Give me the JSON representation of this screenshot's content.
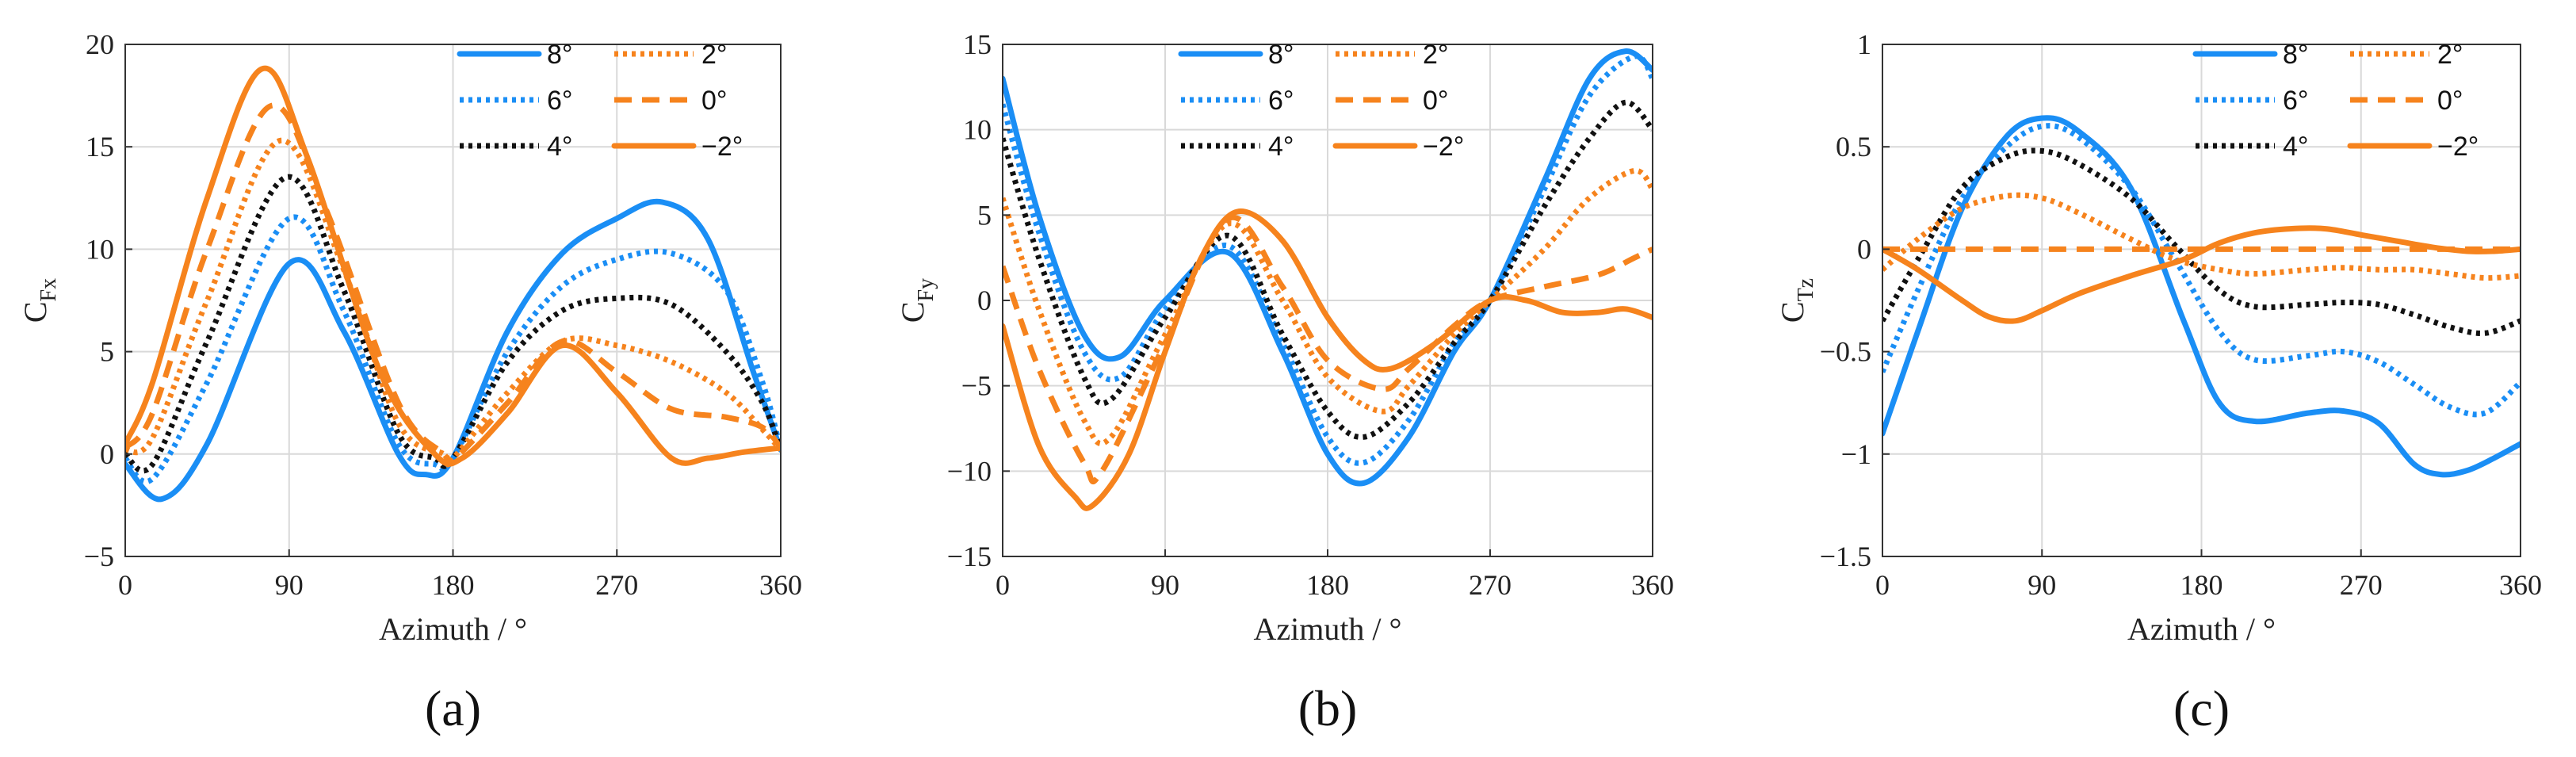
{
  "colors": {
    "blue": "#1a8ef5",
    "orange": "#f6831d",
    "black": "#111111",
    "grid": "#d9d9d9",
    "axis": "#333333"
  },
  "chart_data": [
    {
      "type": "line",
      "panel_label": "(a)",
      "xlabel": "Azimuth / °",
      "ylabel": {
        "main": "C",
        "sub": "Fx"
      },
      "xlim": [
        0,
        360
      ],
      "ylim": [
        -5,
        20
      ],
      "xticks": [
        0,
        90,
        180,
        270,
        360
      ],
      "yticks": [
        -5,
        0,
        5,
        10,
        15,
        20
      ],
      "xtick_labels": [
        "0",
        "90",
        "180",
        "270",
        "360"
      ],
      "ytick_labels": [
        "−5",
        "0",
        "5",
        "10",
        "15",
        "20"
      ],
      "grid": true,
      "legend_position": "top-right",
      "series": [
        {
          "name": "8°",
          "color": "blue",
          "dash": "solid",
          "x": [
            0,
            20,
            45,
            90,
            120,
            150,
            165,
            180,
            210,
            240,
            270,
            295,
            320,
            345,
            360
          ],
          "y": [
            -0.5,
            -2.2,
            0.5,
            9.3,
            6,
            0,
            -1,
            -0.2,
            6,
            9.8,
            11.5,
            12.3,
            10.5,
            4,
            0.2
          ]
        },
        {
          "name": "6°",
          "color": "blue",
          "dash": "dotted",
          "x": [
            0,
            15,
            45,
            90,
            120,
            150,
            170,
            180,
            210,
            240,
            270,
            300,
            330,
            350,
            360
          ],
          "y": [
            -0.2,
            -1.2,
            3.5,
            11.5,
            7,
            0.5,
            -0.5,
            -0.2,
            5,
            8.2,
            9.5,
            9.8,
            8,
            3.5,
            0.2
          ]
        },
        {
          "name": "4°",
          "color": "black",
          "dash": "dotted",
          "x": [
            0,
            15,
            45,
            88,
            120,
            150,
            170,
            180,
            210,
            240,
            270,
            300,
            330,
            350,
            360
          ],
          "y": [
            0,
            -0.5,
            5.5,
            13.5,
            8,
            1,
            -0.2,
            -0.2,
            4.5,
            7,
            7.6,
            7.3,
            5,
            2.5,
            0.2
          ]
        },
        {
          "name": "2°",
          "color": "orange",
          "dash": "dotted",
          "x": [
            0,
            15,
            45,
            85,
            120,
            150,
            175,
            180,
            210,
            240,
            270,
            300,
            330,
            350,
            360
          ],
          "y": [
            0.2,
            0.8,
            7.5,
            15.3,
            9,
            1.5,
            0,
            -0.2,
            3,
            5.5,
            5.3,
            4.5,
            3,
            1.2,
            0.2
          ]
        },
        {
          "name": "0°",
          "color": "orange",
          "dash": "dashed",
          "x": [
            0,
            15,
            45,
            80,
            110,
            150,
            175,
            180,
            210,
            240,
            270,
            300,
            330,
            350,
            360
          ],
          "y": [
            0.3,
            2,
            10,
            17,
            12,
            2.5,
            0,
            -0.3,
            2.5,
            5.5,
            4,
            2.2,
            1.8,
            1.3,
            0.3
          ]
        },
        {
          "name": "−2°",
          "color": "orange",
          "dash": "solid",
          "x": [
            0,
            15,
            45,
            75,
            100,
            140,
            170,
            185,
            210,
            240,
            270,
            300,
            320,
            340,
            360
          ],
          "y": [
            0.5,
            3.5,
            12.5,
            18.8,
            14.5,
            4,
            0,
            -0.2,
            2,
            5.3,
            3,
            -0.2,
            -0.2,
            0.1,
            0.3
          ]
        }
      ]
    },
    {
      "type": "line",
      "panel_label": "(b)",
      "xlabel": "Azimuth / °",
      "ylabel": {
        "main": "C",
        "sub": "Fy"
      },
      "xlim": [
        0,
        360
      ],
      "ylim": [
        -15,
        15
      ],
      "xticks": [
        0,
        90,
        180,
        270,
        360
      ],
      "yticks": [
        -15,
        -10,
        -5,
        0,
        5,
        10,
        15
      ],
      "xtick_labels": [
        "0",
        "90",
        "180",
        "270",
        "360"
      ],
      "ytick_labels": [
        "−15",
        "−10",
        "−5",
        "0",
        "5",
        "10",
        "15"
      ],
      "grid": true,
      "legend_position": "top-left",
      "series": [
        {
          "name": "8°",
          "color": "blue",
          "dash": "solid",
          "x": [
            0,
            20,
            45,
            65,
            90,
            125,
            155,
            180,
            200,
            225,
            250,
            270,
            300,
            325,
            345,
            360
          ],
          "y": [
            13,
            5,
            -2,
            -3.3,
            0,
            2.8,
            -3,
            -9,
            -10.7,
            -8,
            -3,
            0,
            7,
            13,
            14.6,
            13.5
          ]
        },
        {
          "name": "6°",
          "color": "blue",
          "dash": "dotted",
          "x": [
            0,
            20,
            45,
            65,
            90,
            125,
            155,
            180,
            200,
            225,
            250,
            270,
            300,
            325,
            350,
            360
          ],
          "y": [
            11.5,
            4,
            -3,
            -4.5,
            -0.5,
            3.2,
            -2.5,
            -8,
            -9.5,
            -7,
            -2.5,
            0,
            6.5,
            12,
            14.3,
            13
          ]
        },
        {
          "name": "4°",
          "color": "black",
          "dash": "dotted",
          "x": [
            0,
            20,
            45,
            60,
            90,
            125,
            155,
            180,
            200,
            225,
            250,
            270,
            300,
            325,
            345,
            360
          ],
          "y": [
            9.5,
            2.5,
            -4.5,
            -5.8,
            -1,
            3.8,
            -2,
            -6.5,
            -8,
            -6,
            -2.5,
            0,
            5.5,
            9.5,
            11.6,
            10
          ]
        },
        {
          "name": "2°",
          "color": "orange",
          "dash": "dotted",
          "x": [
            0,
            20,
            45,
            60,
            90,
            125,
            155,
            180,
            210,
            225,
            250,
            270,
            300,
            325,
            350,
            360
          ],
          "y": [
            6,
            -0.5,
            -7,
            -8,
            -2,
            4.5,
            0,
            -4.5,
            -6.5,
            -5,
            -2,
            0,
            3,
            6,
            7.6,
            6.5
          ]
        },
        {
          "name": "0°",
          "color": "orange",
          "dash": "dashed",
          "x": [
            0,
            20,
            45,
            55,
            90,
            125,
            155,
            180,
            210,
            225,
            250,
            270,
            300,
            330,
            350,
            360
          ],
          "y": [
            2,
            -4,
            -9.5,
            -10,
            -2.5,
            4.8,
            0.8,
            -3.5,
            -5.2,
            -4,
            -1.5,
            0,
            0.8,
            1.5,
            2.5,
            3
          ]
        },
        {
          "name": "−2°",
          "color": "orange",
          "dash": "solid",
          "x": [
            0,
            20,
            40,
            50,
            70,
            90,
            110,
            130,
            155,
            180,
            200,
            215,
            240,
            270,
            290,
            310,
            330,
            345,
            360
          ],
          "y": [
            -1.5,
            -8.5,
            -11.5,
            -12,
            -9,
            -3,
            2.5,
            5.2,
            3.5,
            -1,
            -3.5,
            -4,
            -2.5,
            0,
            0,
            -0.7,
            -0.7,
            -0.5,
            -1
          ]
        }
      ]
    },
    {
      "type": "line",
      "panel_label": "(c)",
      "xlabel": "Azimuth / °",
      "ylabel": {
        "main": "C",
        "sub": "Tz"
      },
      "xlim": [
        0,
        360
      ],
      "ylim": [
        -1.5,
        1
      ],
      "xticks": [
        0,
        90,
        180,
        270,
        360
      ],
      "yticks": [
        -1.5,
        -1,
        -0.5,
        0,
        0.5,
        1
      ],
      "xtick_labels": [
        "0",
        "90",
        "180",
        "270",
        "360"
      ],
      "ytick_labels": [
        "−1.5",
        "−1",
        "−0.5",
        "0",
        "0.5",
        "1"
      ],
      "grid": true,
      "legend_position": "top-right",
      "series": [
        {
          "name": "8°",
          "color": "blue",
          "dash": "solid",
          "x": [
            0,
            20,
            45,
            70,
            90,
            110,
            140,
            170,
            190,
            210,
            240,
            260,
            280,
            300,
            315,
            330,
            345,
            360
          ],
          "y": [
            -0.9,
            -0.4,
            0.2,
            0.55,
            0.64,
            0.58,
            0.3,
            -0.35,
            -0.75,
            -0.84,
            -0.8,
            -0.79,
            -0.85,
            -1.05,
            -1.1,
            -1.08,
            -1.02,
            -0.95
          ]
        },
        {
          "name": "6°",
          "color": "blue",
          "dash": "dotted",
          "x": [
            0,
            20,
            45,
            70,
            90,
            110,
            140,
            165,
            190,
            210,
            240,
            260,
            280,
            300,
            320,
            340,
            360
          ],
          "y": [
            -0.6,
            -0.2,
            0.25,
            0.5,
            0.6,
            0.55,
            0.3,
            -0.05,
            -0.4,
            -0.54,
            -0.52,
            -0.5,
            -0.55,
            -0.66,
            -0.77,
            -0.8,
            -0.65
          ]
        },
        {
          "name": "4°",
          "color": "black",
          "dash": "dotted",
          "x": [
            0,
            20,
            45,
            70,
            90,
            110,
            140,
            165,
            190,
            210,
            240,
            260,
            280,
            300,
            320,
            340,
            360
          ],
          "y": [
            -0.35,
            -0.05,
            0.3,
            0.45,
            0.48,
            0.42,
            0.25,
            0.02,
            -0.2,
            -0.28,
            -0.27,
            -0.26,
            -0.27,
            -0.32,
            -0.38,
            -0.41,
            -0.35
          ]
        },
        {
          "name": "2°",
          "color": "orange",
          "dash": "dotted",
          "x": [
            0,
            20,
            45,
            70,
            90,
            110,
            140,
            165,
            190,
            210,
            240,
            260,
            280,
            300,
            320,
            340,
            360
          ],
          "y": [
            -0.1,
            0.05,
            0.2,
            0.26,
            0.25,
            0.18,
            0.05,
            -0.05,
            -0.1,
            -0.12,
            -0.1,
            -0.09,
            -0.1,
            -0.1,
            -0.12,
            -0.14,
            -0.13
          ]
        },
        {
          "name": "0°",
          "color": "orange",
          "dash": "dashed",
          "x": [
            0,
            360
          ],
          "y": [
            0,
            0
          ]
        },
        {
          "name": "−2°",
          "color": "orange",
          "dash": "solid",
          "x": [
            0,
            20,
            45,
            60,
            75,
            90,
            110,
            140,
            170,
            190,
            210,
            230,
            250,
            270,
            290,
            310,
            330,
            345,
            360
          ],
          "y": [
            0,
            -0.1,
            -0.25,
            -0.33,
            -0.35,
            -0.3,
            -0.22,
            -0.13,
            -0.05,
            0.03,
            0.08,
            0.1,
            0.1,
            0.07,
            0.04,
            0.01,
            -0.01,
            -0.01,
            0
          ]
        }
      ]
    }
  ]
}
